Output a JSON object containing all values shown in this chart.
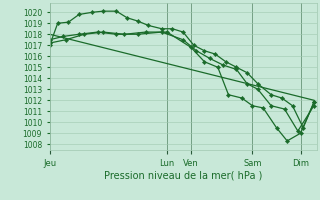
{
  "xlabel": "Pression niveau de la mer( hPa )",
  "bg_color": "#c8e8d8",
  "grid_color": "#a0c8b0",
  "line_color": "#1a6b2a",
  "vline_color": "#2a5a3a",
  "ylim": [
    1007.5,
    1020.8
  ],
  "yticks": [
    1008,
    1009,
    1010,
    1011,
    1012,
    1013,
    1014,
    1015,
    1016,
    1017,
    1018,
    1019,
    1020
  ],
  "xlim": [
    0,
    1.0
  ],
  "day_positions": [
    0.0,
    0.44,
    0.53,
    0.76,
    0.94
  ],
  "day_labels": [
    "Jeu",
    "Lun",
    "Ven",
    "Sam",
    "Dim"
  ],
  "line1_x": [
    0.0,
    0.03,
    0.07,
    0.11,
    0.16,
    0.2,
    0.25,
    0.29,
    0.33,
    0.37,
    0.42,
    0.46,
    0.5,
    0.54,
    0.58,
    0.62,
    0.66,
    0.7,
    0.74,
    0.78,
    0.83,
    0.87,
    0.91,
    0.95,
    0.99
  ],
  "line1_y": [
    1017.0,
    1019.0,
    1019.1,
    1019.8,
    1020.0,
    1020.1,
    1020.1,
    1019.5,
    1019.2,
    1018.8,
    1018.5,
    1018.5,
    1018.2,
    1017.0,
    1016.5,
    1016.2,
    1015.5,
    1015.0,
    1014.5,
    1013.5,
    1012.5,
    1012.2,
    1011.5,
    1009.5,
    1011.8
  ],
  "line2_x": [
    0.0,
    0.05,
    0.11,
    0.18,
    0.25,
    0.33,
    0.42,
    0.5,
    0.55,
    0.6,
    0.65,
    0.7,
    0.74,
    0.78,
    0.83,
    0.88,
    0.93,
    0.99
  ],
  "line2_y": [
    1017.5,
    1017.8,
    1018.0,
    1018.2,
    1018.0,
    1018.0,
    1018.2,
    1017.5,
    1016.5,
    1015.8,
    1015.2,
    1014.8,
    1013.5,
    1013.0,
    1011.5,
    1011.2,
    1009.2,
    1011.5
  ],
  "line3_x": [
    0.0,
    0.06,
    0.13,
    0.2,
    0.28,
    0.36,
    0.44,
    0.53,
    0.58,
    0.63,
    0.67,
    0.72,
    0.76,
    0.8,
    0.85,
    0.89,
    0.94,
    0.99
  ],
  "line3_y": [
    1017.2,
    1017.5,
    1018.0,
    1018.2,
    1018.0,
    1018.2,
    1018.2,
    1016.8,
    1015.5,
    1015.0,
    1012.5,
    1012.2,
    1011.5,
    1011.3,
    1009.5,
    1008.3,
    1009.0,
    1011.8
  ],
  "line4_x": [
    0.0,
    0.99
  ],
  "line4_y": [
    1018.0,
    1012.0
  ]
}
